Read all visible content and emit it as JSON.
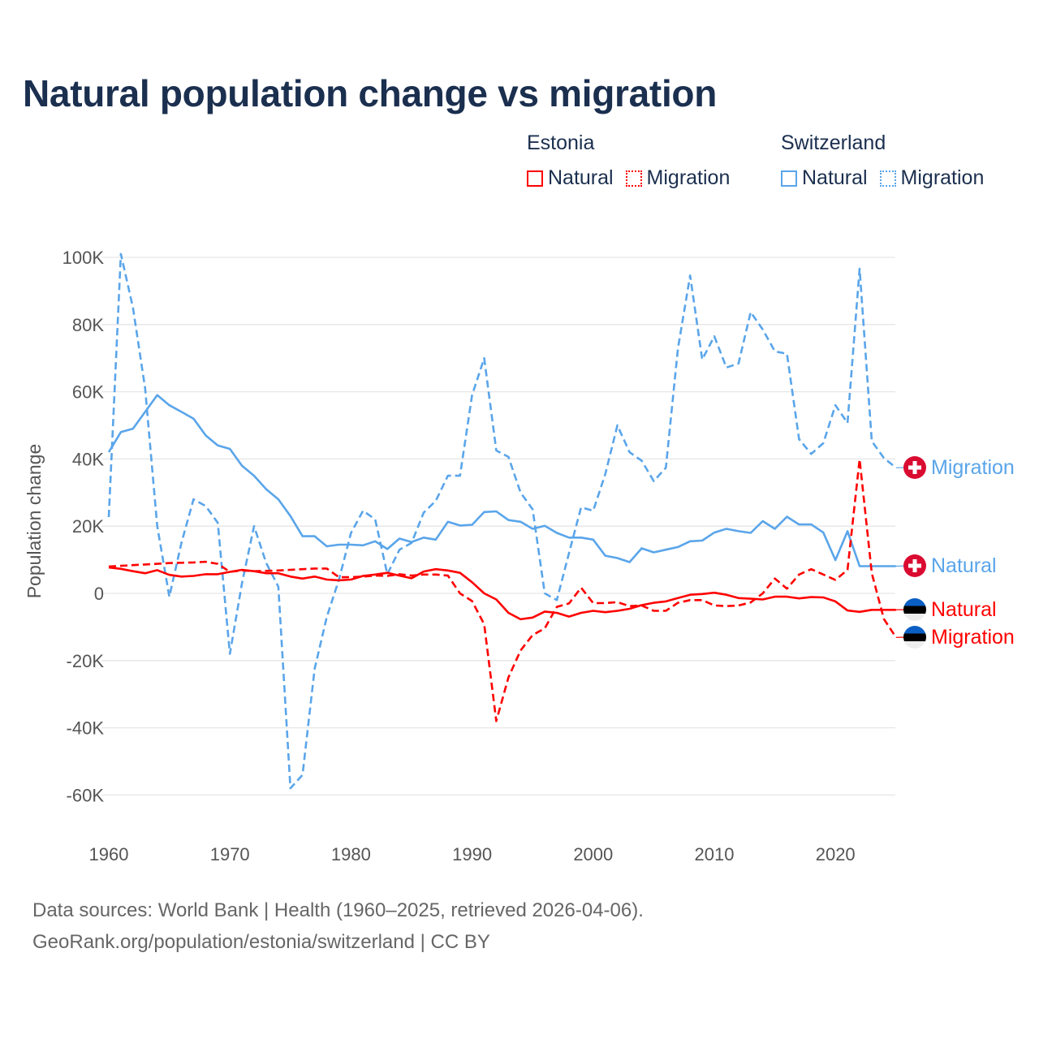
{
  "title": "Natural population change vs migration",
  "legend": {
    "groups": [
      {
        "name": "Estonia",
        "items": [
          {
            "label": "Natural",
            "style": "solid"
          },
          {
            "label": "Migration",
            "style": "dashed"
          }
        ],
        "color": "#ff0000"
      },
      {
        "name": "Switzerland",
        "items": [
          {
            "label": "Natural",
            "style": "solid"
          },
          {
            "label": "Migration",
            "style": "dashed"
          }
        ],
        "color": "#5aa5ea"
      }
    ]
  },
  "footer": {
    "line1": "Data sources: World Bank | Health (1960–2025, retrieved 2026-04-06).",
    "line2": "GeoRank.org/population/estonia/switzerland | CC BY"
  },
  "chart_data": {
    "type": "line",
    "title": "Natural population change vs migration",
    "xlabel": "",
    "ylabel": "Population change",
    "xlim": [
      1960,
      2025
    ],
    "ylim": [
      -70000,
      100000
    ],
    "yticks": [
      100000,
      80000,
      60000,
      40000,
      20000,
      0,
      -20000,
      -40000,
      -60000
    ],
    "ytick_labels": [
      "100K",
      "80K",
      "60K",
      "40K",
      "20K",
      "0",
      "-20K",
      "-40K",
      "-60K"
    ],
    "xticks": [
      1960,
      1970,
      1980,
      1990,
      2000,
      2010,
      2020
    ],
    "xtick_labels": [
      "1960",
      "1970",
      "1980",
      "1990",
      "2000",
      "2010",
      "2020"
    ],
    "grid": true,
    "legend_position": "top-right",
    "x_start": 1960,
    "series": [
      {
        "name": "Switzerland Natural",
        "country": "Switzerland",
        "kind": "Natural",
        "color": "#5aa5ea",
        "dashed": false,
        "end_label": "Natural",
        "flag": "switzerland",
        "values": [
          42,
          48,
          49,
          54,
          59,
          56,
          54,
          52,
          47,
          44,
          43,
          38,
          35,
          31,
          28,
          23,
          17,
          17,
          14,
          14.5,
          14.5,
          14.3,
          15.5,
          13.2,
          16.3,
          15.3,
          16.6,
          16,
          21.3,
          20.2,
          20.4,
          24.2,
          24.4,
          21.8,
          21.3,
          19.2,
          20.1,
          18,
          16.6,
          16.6,
          16,
          11.2,
          10.5,
          9.3,
          13.4,
          12.2,
          13,
          13.8,
          15.5,
          15.7,
          18.1,
          19.2,
          18.5,
          18,
          21.5,
          19.2,
          22.8,
          20.5,
          20.5,
          18.1,
          9.9,
          18.5,
          8.1,
          8.1,
          8.1,
          8.1
        ]
      },
      {
        "name": "Switzerland Migration",
        "country": "Switzerland",
        "kind": "Migration",
        "color": "#5aa5ea",
        "dashed": true,
        "end_label": "Migration",
        "flag": "switzerland",
        "values": [
          22.7,
          101,
          85,
          61,
          20,
          -1,
          15,
          28,
          26,
          21,
          -18,
          3,
          20,
          9,
          2,
          -58,
          -54,
          -22.5,
          -7,
          4,
          18,
          24.6,
          22,
          5.7,
          13,
          15,
          24,
          27.5,
          35,
          35,
          59,
          70,
          42.5,
          40.6,
          30,
          25,
          0,
          -2,
          12,
          25.6,
          24.6,
          35.5,
          50,
          42,
          39.5,
          33.4,
          37.4,
          72.9,
          94.6,
          69.6,
          76.5,
          67.2,
          68.4,
          83.7,
          78.5,
          72,
          71.3,
          45.9,
          41.5,
          44.7,
          56,
          50.7,
          96.6,
          45.3,
          40.3,
          37.4
        ]
      },
      {
        "name": "Estonia Natural",
        "country": "Estonia",
        "kind": "Natural",
        "color": "#ff0000",
        "dashed": false,
        "end_label": "Natural",
        "flag": "estonia",
        "values": [
          7.7,
          7.3,
          6.6,
          6,
          6.9,
          5.5,
          5,
          5.2,
          5.7,
          5.7,
          6.4,
          7,
          6.6,
          6,
          6,
          5,
          4.4,
          5,
          4.1,
          3.9,
          4.1,
          5.2,
          5.6,
          6.1,
          5.3,
          4.5,
          6.5,
          7.2,
          6.8,
          6.1,
          3.3,
          0,
          -1.8,
          -5.8,
          -7.7,
          -7.2,
          -5.4,
          -5.8,
          -6.9,
          -5.8,
          -5.2,
          -5.6,
          -5.2,
          -4.6,
          -3.5,
          -2.8,
          -2.4,
          -1.4,
          -0.4,
          -0.2,
          0.2,
          -0.4,
          -1.4,
          -1.6,
          -1.8,
          -1,
          -1,
          -1.5,
          -1.1,
          -1.2,
          -2.4,
          -5.1,
          -5.5,
          -4.9,
          -4.9,
          -4.9
        ]
      },
      {
        "name": "Estonia Migration",
        "country": "Estonia",
        "kind": "Migration",
        "color": "#ff0000",
        "dashed": true,
        "end_label": "Migration",
        "flag": "estonia",
        "values": [
          8,
          8.2,
          8.4,
          8.6,
          8.8,
          9,
          9.1,
          9.2,
          9.4,
          8.8,
          6.4,
          6.8,
          6.6,
          6.7,
          6.8,
          7,
          7.2,
          7.4,
          7.4,
          4.8,
          4.8,
          5,
          5.3,
          5.2,
          5.7,
          5.3,
          5.6,
          5.6,
          5.3,
          0,
          -2.3,
          -9.2,
          -38,
          -25,
          -17,
          -12.4,
          -10.4,
          -4,
          -3,
          1.7,
          -2.9,
          -2.9,
          -2.6,
          -3.8,
          -3.6,
          -5.2,
          -5.2,
          -2.8,
          -2,
          -2,
          -3.6,
          -3.8,
          -3.6,
          -2.7,
          0,
          4.4,
          1.4,
          5.6,
          7.2,
          5.6,
          4,
          7,
          39.9,
          6,
          -7.6,
          -13.1
        ]
      }
    ],
    "value_units": "thousands"
  }
}
